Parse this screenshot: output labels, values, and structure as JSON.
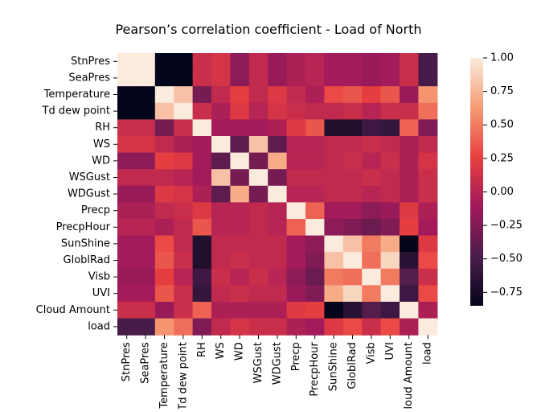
{
  "chart_data": {
    "type": "heatmap",
    "title": "Pearson’s correlation coefficient - Load of North",
    "variables": [
      "StnPres",
      "SeaPres",
      "Temperature",
      "Td dew point",
      "RH",
      "WS",
      "WD",
      "WSGust",
      "WDGust",
      "Precp",
      "PrecpHour",
      "SunShine",
      "GloblRad",
      "Visb",
      "UVI",
      "Cloud Amount",
      "load"
    ],
    "matrix": [
      [
        1.0,
        1.0,
        -0.85,
        -0.85,
        0.1,
        0.15,
        -0.2,
        0.05,
        -0.15,
        -0.05,
        0.0,
        -0.1,
        -0.1,
        -0.15,
        -0.1,
        0.1,
        -0.5
      ],
      [
        1.0,
        1.0,
        -0.85,
        -0.85,
        0.1,
        0.15,
        -0.2,
        0.05,
        -0.15,
        -0.05,
        0.0,
        -0.1,
        -0.1,
        -0.15,
        -0.1,
        0.1,
        -0.5
      ],
      [
        -0.85,
        -0.85,
        1.0,
        0.8,
        -0.3,
        0.05,
        0.25,
        0.05,
        0.2,
        0.05,
        -0.05,
        0.3,
        0.35,
        0.25,
        0.35,
        -0.15,
        0.6
      ],
      [
        -0.85,
        -0.85,
        0.8,
        1.0,
        0.1,
        -0.05,
        0.2,
        0.0,
        0.15,
        0.1,
        0.05,
        0.05,
        0.1,
        0.0,
        0.1,
        0.1,
        0.45
      ],
      [
        0.1,
        0.1,
        -0.3,
        0.1,
        1.0,
        -0.1,
        -0.1,
        -0.1,
        -0.05,
        0.2,
        0.35,
        -0.7,
        -0.7,
        -0.55,
        -0.6,
        0.4,
        -0.25
      ],
      [
        0.15,
        0.15,
        0.05,
        -0.05,
        -0.1,
        1.0,
        -0.4,
        0.8,
        -0.4,
        0.0,
        0.0,
        0.05,
        0.05,
        0.1,
        0.05,
        -0.05,
        0.05
      ],
      [
        -0.2,
        -0.2,
        0.25,
        0.2,
        -0.1,
        -0.4,
        1.0,
        -0.3,
        0.7,
        0.0,
        0.0,
        0.05,
        0.1,
        0.0,
        0.1,
        -0.05,
        0.15
      ],
      [
        0.05,
        0.05,
        0.05,
        0.0,
        -0.1,
        0.8,
        -0.3,
        1.0,
        -0.3,
        0.05,
        0.05,
        0.05,
        0.05,
        0.1,
        0.05,
        -0.05,
        0.1
      ],
      [
        -0.15,
        -0.15,
        0.2,
        0.15,
        -0.05,
        -0.4,
        0.7,
        -0.3,
        1.0,
        0.0,
        0.0,
        0.05,
        0.05,
        0.0,
        0.05,
        -0.05,
        0.1
      ],
      [
        -0.05,
        -0.05,
        0.05,
        0.1,
        0.2,
        0.0,
        0.0,
        0.05,
        0.0,
        1.0,
        0.4,
        -0.1,
        -0.1,
        -0.2,
        -0.15,
        0.2,
        -0.05
      ],
      [
        0.0,
        0.0,
        -0.05,
        0.05,
        0.35,
        0.0,
        0.0,
        0.05,
        0.0,
        0.4,
        1.0,
        -0.2,
        -0.25,
        -0.35,
        -0.25,
        0.25,
        -0.1
      ],
      [
        -0.1,
        -0.1,
        0.3,
        0.05,
        -0.7,
        0.05,
        0.05,
        0.05,
        0.05,
        -0.1,
        -0.2,
        1.0,
        0.8,
        0.5,
        0.7,
        -0.85,
        0.2
      ],
      [
        -0.1,
        -0.1,
        0.35,
        0.1,
        -0.7,
        0.05,
        0.1,
        0.05,
        0.05,
        -0.1,
        -0.25,
        0.8,
        1.0,
        0.45,
        0.9,
        -0.65,
        0.3
      ],
      [
        -0.15,
        -0.15,
        0.25,
        0.0,
        -0.55,
        0.1,
        0.0,
        0.1,
        0.0,
        -0.2,
        -0.35,
        0.5,
        0.45,
        1.0,
        0.5,
        -0.45,
        0.1
      ],
      [
        -0.1,
        -0.1,
        0.35,
        0.1,
        -0.6,
        0.05,
        0.1,
        0.05,
        0.05,
        -0.15,
        -0.25,
        0.7,
        0.9,
        0.5,
        1.0,
        -0.55,
        0.3
      ],
      [
        0.1,
        0.1,
        -0.15,
        0.1,
        0.4,
        -0.05,
        -0.05,
        -0.05,
        -0.05,
        0.2,
        0.25,
        -0.85,
        -0.65,
        -0.45,
        -0.55,
        1.0,
        -0.05
      ],
      [
        -0.5,
        -0.5,
        0.6,
        0.45,
        -0.25,
        0.05,
        0.15,
        0.1,
        0.1,
        -0.05,
        -0.1,
        0.2,
        0.3,
        0.1,
        0.3,
        -0.05,
        1.0
      ]
    ],
    "vmin": -0.85,
    "vmax": 1.0,
    "colorbar_ticks": [
      1.0,
      0.75,
      0.5,
      0.25,
      0.0,
      -0.25,
      -0.5,
      -0.75
    ],
    "colorbar_tick_labels": [
      "1.00",
      "0.75",
      "0.50",
      "0.25",
      "0.00",
      "−0.25",
      "−0.50",
      "−0.75"
    ],
    "colormap": "rocket",
    "colormap_stops": [
      "#03051a",
      "#4c1d4b",
      "#a11a5b",
      "#e83f3f",
      "#f69c73",
      "#faebdd"
    ],
    "grid": false,
    "legend": "colorbar-right"
  }
}
